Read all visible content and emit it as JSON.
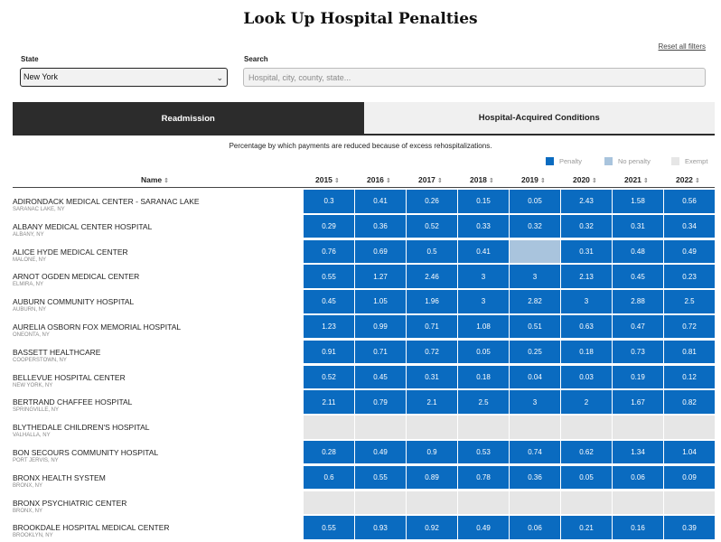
{
  "page": {
    "title": "Look Up Hospital Penalties",
    "reset_label": "Reset all filters"
  },
  "filters": {
    "state_label": "State",
    "state_value": "New York",
    "search_label": "Search",
    "search_placeholder": "Hospital, city, county, state..."
  },
  "tabs": [
    {
      "label": "Readmission",
      "active": true
    },
    {
      "label": "Hospital-Acquired Conditions",
      "active": false
    }
  ],
  "subtitle": "Percentage by which payments are reduced because of excess rehospitalizations.",
  "legend": {
    "penalty": {
      "label": "Penalty",
      "color": "#0a6bc0"
    },
    "no_penalty": {
      "label": "No penalty",
      "color": "#a9c4dd"
    },
    "exempt": {
      "label": "Exempt",
      "color": "#e6e6e6"
    }
  },
  "sort_icon": "sort-arrows-icon",
  "table": {
    "name_header": "Name",
    "years": [
      "2015",
      "2016",
      "2017",
      "2018",
      "2019",
      "2020",
      "2021",
      "2022"
    ],
    "rows": [
      {
        "name": "ADIRONDACK MEDICAL CENTER - SARANAC LAKE",
        "location": "SARANAC LAKE, NY",
        "values": [
          "0.3",
          "0.41",
          "0.26",
          "0.15",
          "0.05",
          "2.43",
          "1.58",
          "0.56"
        ],
        "status": [
          "pen",
          "pen",
          "pen",
          "pen",
          "pen",
          "pen",
          "pen",
          "pen"
        ]
      },
      {
        "name": "ALBANY MEDICAL CENTER HOSPITAL",
        "location": "ALBANY, NY",
        "values": [
          "0.29",
          "0.36",
          "0.52",
          "0.33",
          "0.32",
          "0.32",
          "0.31",
          "0.34"
        ],
        "status": [
          "pen",
          "pen",
          "pen",
          "pen",
          "pen",
          "pen",
          "pen",
          "pen"
        ]
      },
      {
        "name": "ALICE HYDE MEDICAL CENTER",
        "location": "MALONE, NY",
        "values": [
          "0.76",
          "0.69",
          "0.5",
          "0.41",
          "",
          "0.31",
          "0.48",
          "0.49"
        ],
        "status": [
          "pen",
          "pen",
          "pen",
          "pen",
          "nop",
          "pen",
          "pen",
          "pen"
        ]
      },
      {
        "name": "ARNOT OGDEN MEDICAL CENTER",
        "location": "ELMIRA, NY",
        "values": [
          "0.55",
          "1.27",
          "2.46",
          "3",
          "3",
          "2.13",
          "0.45",
          "0.23"
        ],
        "status": [
          "pen",
          "pen",
          "pen",
          "pen",
          "pen",
          "pen",
          "pen",
          "pen"
        ]
      },
      {
        "name": "AUBURN COMMUNITY HOSPITAL",
        "location": "AUBURN, NY",
        "values": [
          "0.45",
          "1.05",
          "1.96",
          "3",
          "2.82",
          "3",
          "2.88",
          "2.5"
        ],
        "status": [
          "pen",
          "pen",
          "pen",
          "pen",
          "pen",
          "pen",
          "pen",
          "pen"
        ]
      },
      {
        "name": "AURELIA OSBORN FOX MEMORIAL HOSPITAL",
        "location": "ONEONTA, NY",
        "values": [
          "1.23",
          "0.99",
          "0.71",
          "1.08",
          "0.51",
          "0.63",
          "0.47",
          "0.72"
        ],
        "status": [
          "pen",
          "pen",
          "pen",
          "pen",
          "pen",
          "pen",
          "pen",
          "pen"
        ]
      },
      {
        "name": "BASSETT HEALTHCARE",
        "location": "COOPERSTOWN, NY",
        "values": [
          "0.91",
          "0.71",
          "0.72",
          "0.05",
          "0.25",
          "0.18",
          "0.73",
          "0.81"
        ],
        "status": [
          "pen",
          "pen",
          "pen",
          "pen",
          "pen",
          "pen",
          "pen",
          "pen"
        ]
      },
      {
        "name": "BELLEVUE HOSPITAL CENTER",
        "location": "NEW YORK, NY",
        "values": [
          "0.52",
          "0.45",
          "0.31",
          "0.18",
          "0.04",
          "0.03",
          "0.19",
          "0.12"
        ],
        "status": [
          "pen",
          "pen",
          "pen",
          "pen",
          "pen",
          "pen",
          "pen",
          "pen"
        ]
      },
      {
        "name": "BERTRAND CHAFFEE HOSPITAL",
        "location": "SPRINGVILLE, NY",
        "values": [
          "2.11",
          "0.79",
          "2.1",
          "2.5",
          "3",
          "2",
          "1.67",
          "0.82"
        ],
        "status": [
          "pen",
          "pen",
          "pen",
          "pen",
          "pen",
          "pen",
          "pen",
          "pen"
        ]
      },
      {
        "name": "BLYTHEDALE CHILDREN'S HOSPITAL",
        "location": "VALHALLA, NY",
        "values": [
          "",
          "",
          "",
          "",
          "",
          "",
          "",
          ""
        ],
        "status": [
          "exe",
          "exe",
          "exe",
          "exe",
          "exe",
          "exe",
          "exe",
          "exe"
        ]
      },
      {
        "name": "BON SECOURS COMMUNITY HOSPITAL",
        "location": "PORT JERVIS, NY",
        "values": [
          "0.28",
          "0.49",
          "0.9",
          "0.53",
          "0.74",
          "0.62",
          "1.34",
          "1.04"
        ],
        "status": [
          "pen",
          "pen",
          "pen",
          "pen",
          "pen",
          "pen",
          "pen",
          "pen"
        ]
      },
      {
        "name": "BRONX HEALTH SYSTEM",
        "location": "BRONX, NY",
        "values": [
          "0.6",
          "0.55",
          "0.89",
          "0.78",
          "0.36",
          "0.05",
          "0.06",
          "0.09"
        ],
        "status": [
          "pen",
          "pen",
          "pen",
          "pen",
          "pen",
          "pen",
          "pen",
          "pen"
        ]
      },
      {
        "name": "BRONX PSYCHIATRIC CENTER",
        "location": "BRONX, NY",
        "values": [
          "",
          "",
          "",
          "",
          "",
          "",
          "",
          ""
        ],
        "status": [
          "exe",
          "exe",
          "exe",
          "exe",
          "exe",
          "exe",
          "exe",
          "exe"
        ]
      },
      {
        "name": "BROOKDALE HOSPITAL MEDICAL CENTER",
        "location": "BROOKLYN, NY",
        "values": [
          "0.55",
          "0.93",
          "0.92",
          "0.49",
          "0.06",
          "0.21",
          "0.16",
          "0.39"
        ],
        "status": [
          "pen",
          "pen",
          "pen",
          "pen",
          "pen",
          "pen",
          "pen",
          "pen"
        ]
      }
    ]
  }
}
